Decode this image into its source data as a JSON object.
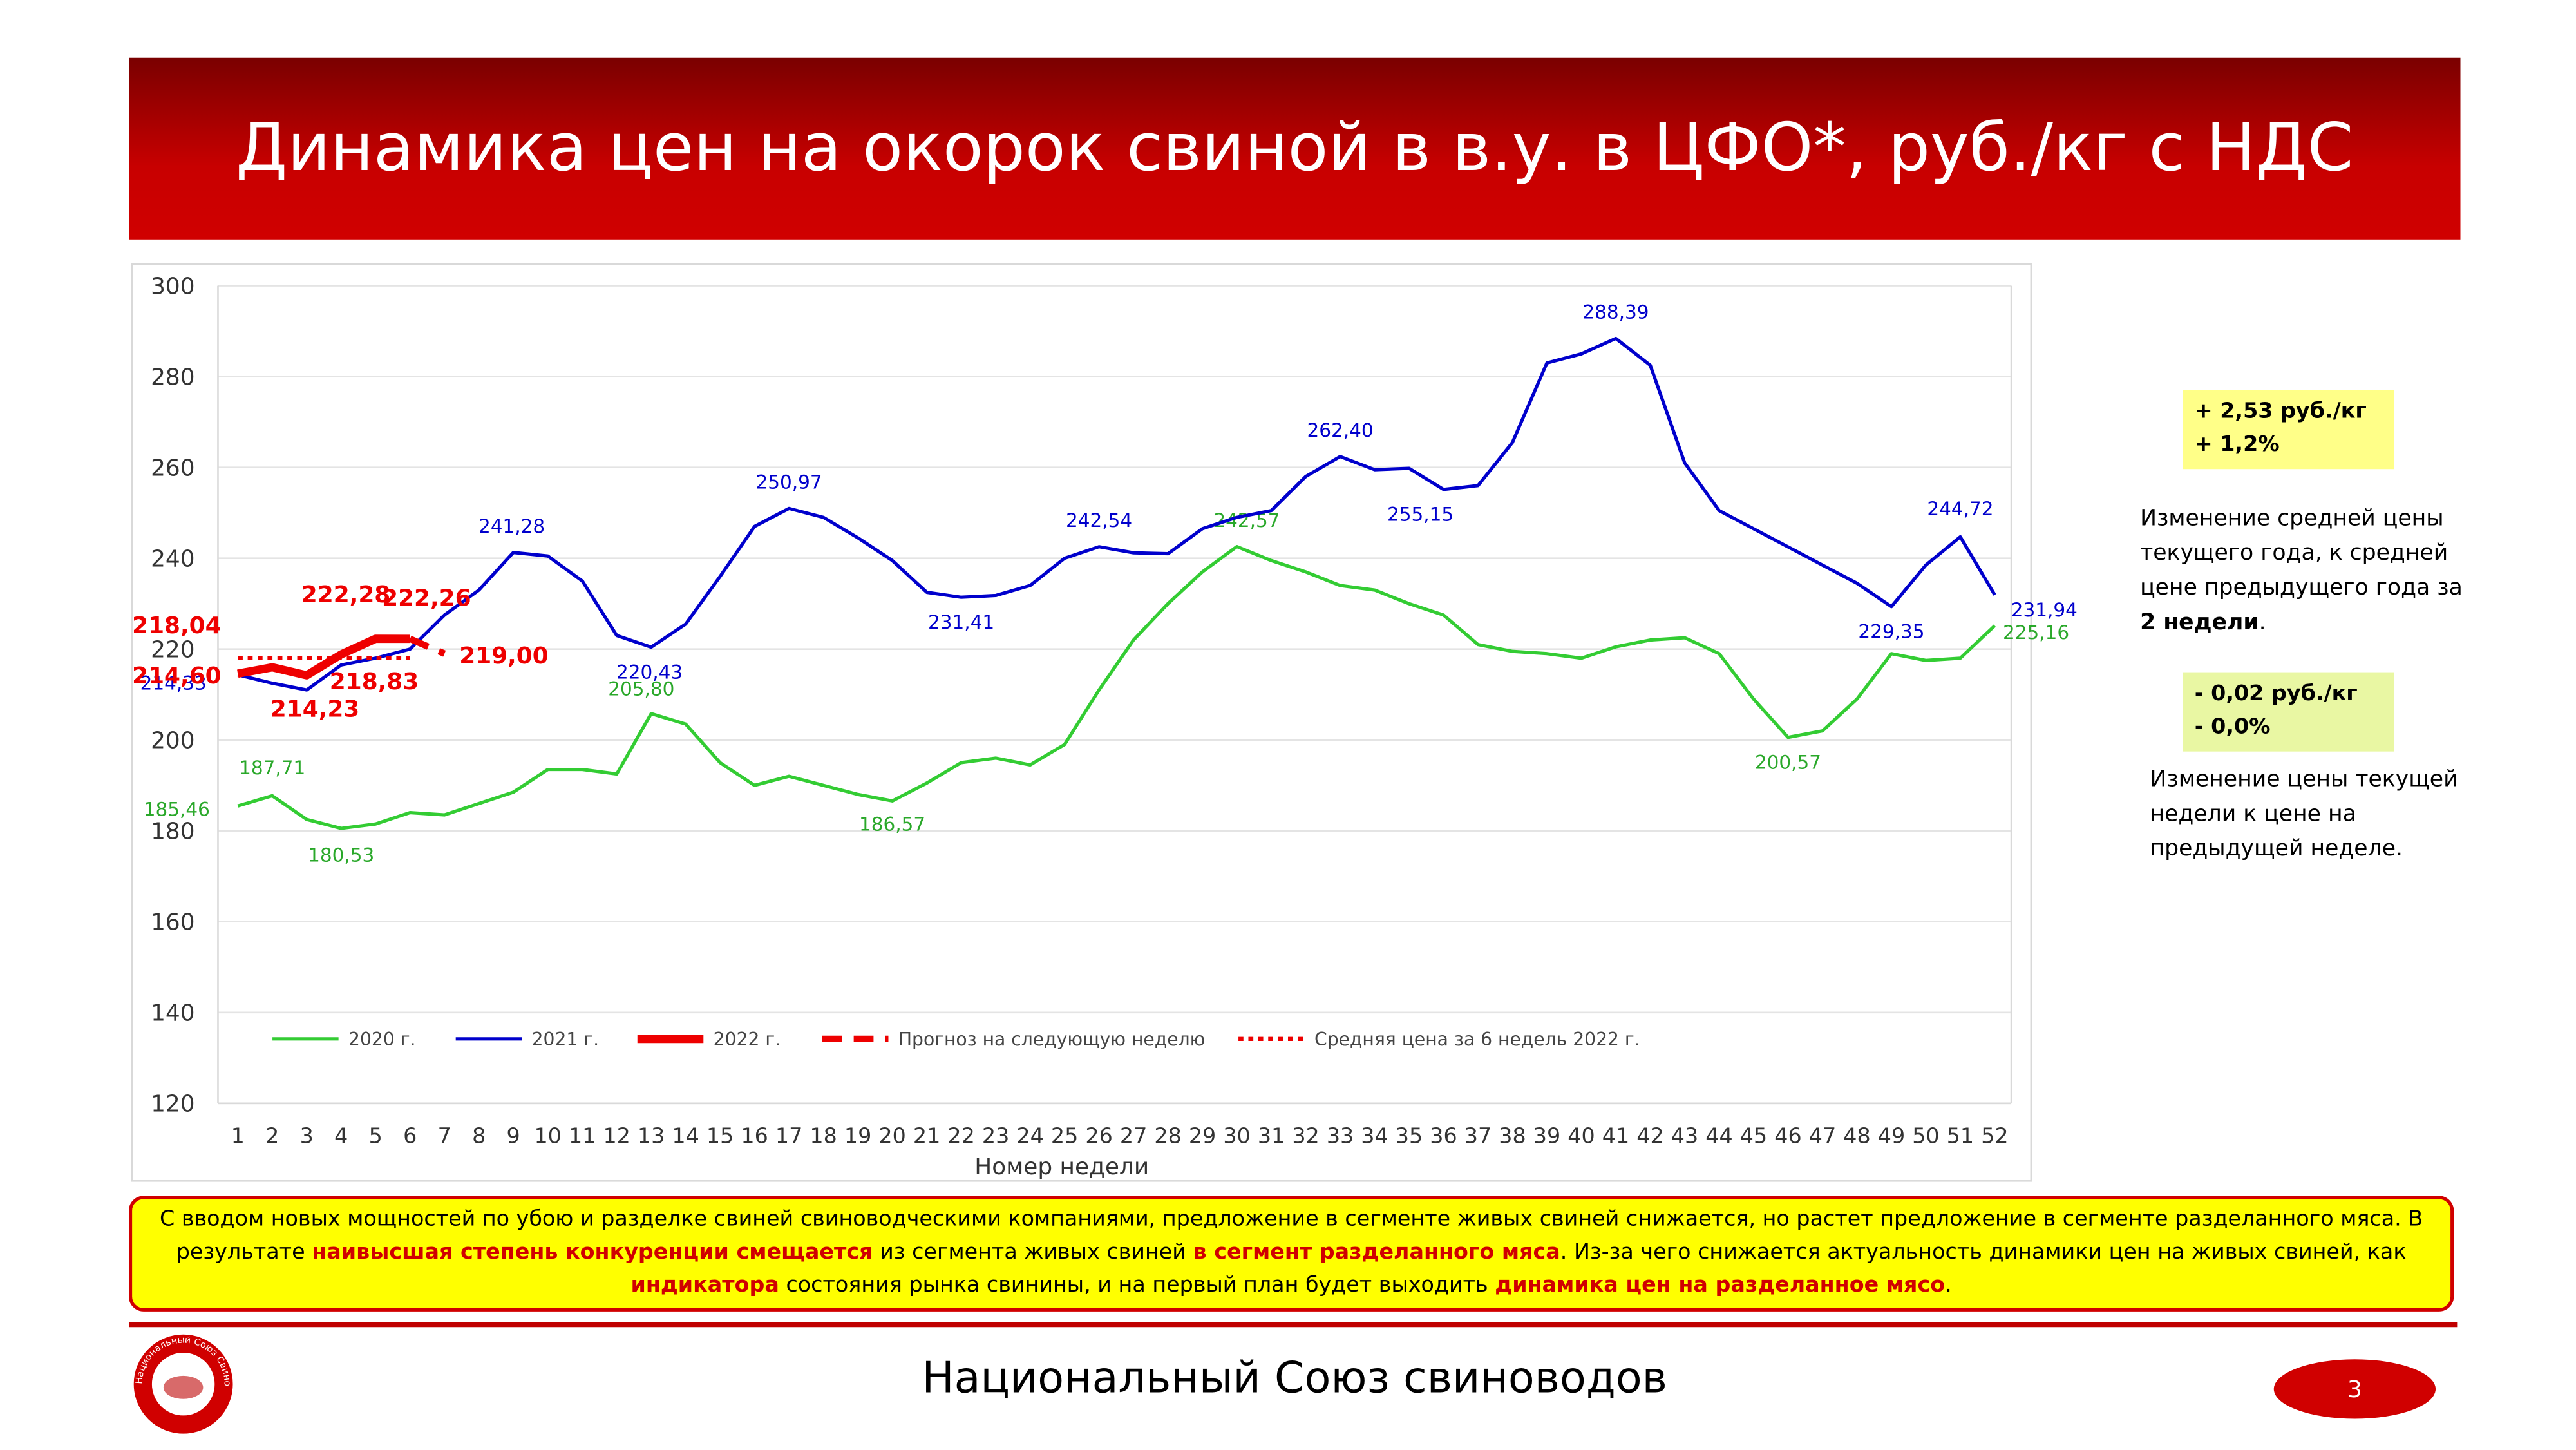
{
  "header": {
    "title": "Динамика цен на окорок свиной в в.у. в ЦФО*, руб./кг с НДС"
  },
  "chart_data": {
    "type": "line",
    "x_label": "Номер недели",
    "categories": [
      1,
      2,
      3,
      4,
      5,
      6,
      7,
      8,
      9,
      10,
      11,
      12,
      13,
      14,
      15,
      16,
      17,
      18,
      19,
      20,
      21,
      22,
      23,
      24,
      25,
      26,
      27,
      28,
      29,
      30,
      31,
      32,
      33,
      34,
      35,
      36,
      37,
      38,
      39,
      40,
      41,
      42,
      43,
      44,
      45,
      46,
      47,
      48,
      49,
      50,
      51,
      52
    ],
    "ylim": [
      120,
      300
    ],
    "yticks": [
      120,
      140,
      160,
      180,
      200,
      220,
      240,
      260,
      280,
      300
    ],
    "grid": true,
    "series": [
      {
        "name": "2020 г.",
        "color": "#33cc33",
        "style": "solid",
        "x": [
          1,
          2,
          3,
          4,
          5,
          6,
          7,
          8,
          9,
          10,
          11,
          12,
          13,
          14,
          15,
          16,
          17,
          18,
          19,
          20,
          21,
          22,
          23,
          24,
          25,
          26,
          27,
          28,
          29,
          30,
          31,
          32,
          33,
          34,
          35,
          36,
          37,
          38,
          39,
          40,
          41,
          42,
          43,
          44,
          45,
          46,
          47,
          48,
          49,
          50,
          51,
          52
        ],
        "values": [
          185.46,
          187.71,
          182.5,
          180.53,
          181.5,
          184,
          183.5,
          186,
          188.5,
          193.5,
          193.5,
          192.5,
          205.8,
          203.5,
          195,
          190,
          192,
          190,
          188,
          186.57,
          190.5,
          195,
          196,
          194.5,
          199,
          211,
          222,
          230,
          237,
          242.57,
          239.5,
          237,
          234,
          233,
          230,
          227.5,
          221,
          219.5,
          219,
          218,
          220.5,
          222,
          222.5,
          219,
          209,
          200.57,
          202,
          209,
          219,
          217.5,
          218,
          225.16
        ],
        "value_labels": [
          "185,46",
          "187,71",
          null,
          "180,53",
          null,
          null,
          null,
          null,
          null,
          null,
          null,
          null,
          "205,80",
          null,
          null,
          null,
          null,
          null,
          null,
          "186,57",
          null,
          null,
          null,
          null,
          null,
          null,
          null,
          null,
          null,
          "242,57",
          null,
          null,
          null,
          null,
          null,
          null,
          null,
          null,
          null,
          null,
          null,
          null,
          null,
          null,
          null,
          "200,57",
          null,
          null,
          null,
          null,
          null,
          "225,16"
        ]
      },
      {
        "name": "2021 г.",
        "color": "#0000cc",
        "style": "solid",
        "x": [
          1,
          2,
          3,
          4,
          5,
          6,
          7,
          8,
          9,
          10,
          11,
          12,
          13,
          14,
          15,
          16,
          17,
          18,
          19,
          20,
          21,
          22,
          23,
          24,
          25,
          26,
          27,
          28,
          29,
          30,
          31,
          32,
          33,
          34,
          35,
          36,
          37,
          38,
          39,
          40,
          41,
          42,
          43,
          44,
          45,
          46,
          47,
          48,
          49,
          50,
          51,
          52
        ],
        "values": [
          214.33,
          212.5,
          211,
          216.5,
          218,
          220,
          227.5,
          233,
          241.28,
          240.5,
          235,
          223,
          220.43,
          225.5,
          236,
          247,
          250.97,
          249,
          244.5,
          239.5,
          232.5,
          231.41,
          231.8,
          234,
          240,
          242.54,
          241.2,
          241,
          246.5,
          249,
          250.5,
          258,
          262.4,
          259.5,
          259.8,
          255.15,
          256,
          265.5,
          283,
          285,
          288.39,
          282.5,
          261,
          250.5,
          246.5,
          242.5,
          238.5,
          234.5,
          229.35,
          238.5,
          244.72,
          231.94
        ],
        "value_labels": [
          "214,33",
          null,
          null,
          null,
          null,
          null,
          null,
          null,
          "241,28",
          null,
          null,
          null,
          "220,43",
          null,
          null,
          null,
          "250,97",
          null,
          null,
          null,
          null,
          "231,41",
          null,
          null,
          null,
          "242,54",
          null,
          null,
          null,
          null,
          null,
          null,
          "262,40",
          null,
          null,
          "255,15",
          null,
          null,
          null,
          null,
          "288,39",
          null,
          null,
          null,
          null,
          null,
          null,
          null,
          "229,35",
          null,
          "244,72",
          "231,94"
        ]
      },
      {
        "name": "2022 г.",
        "color": "#ee0000",
        "style": "bold",
        "x": [
          1,
          2,
          3,
          4,
          5,
          6
        ],
        "values": [
          214.6,
          216,
          214.23,
          218.83,
          222.28,
          222.26
        ],
        "value_labels": [
          "214,60",
          null,
          "214,23",
          "218,83",
          "222,28",
          "222,26"
        ]
      },
      {
        "name": "Прогноз на следующую неделю",
        "color": "#ee0000",
        "style": "dashed",
        "x": [
          6,
          7
        ],
        "values": [
          222.26,
          219.0
        ],
        "value_labels": [
          null,
          "219,00"
        ]
      },
      {
        "name": "Средняя цена за 6 недель 2022 г.",
        "color": "#ee0000",
        "style": "dotted",
        "x": [
          1,
          2,
          3,
          4,
          5,
          6
        ],
        "values": [
          218.04,
          218.04,
          218.04,
          218.04,
          218.04,
          218.04
        ],
        "value_labels": [
          "218,04",
          null,
          null,
          null,
          null,
          null
        ]
      }
    ]
  },
  "side": [
    {
      "box": [
        "+ 2,53 руб./кг",
        "+ 1,2%"
      ],
      "description": "Изменение средней цены текущего года, к средней цене предыдущего года за",
      "description_bold": "2 недели",
      "description_end": "."
    },
    {
      "box": [
        "- 0,02 руб./кг",
        "- 0,0%"
      ],
      "description": "Изменение цены текущей недели к цене на предыдущей неделе."
    }
  ],
  "note": [
    {
      "text": "С вводом новых мощностей по убою и разделке свиней свиноводческими компаниями, предложение в сегменте живых свиней снижается, но растет предложение в сегменте разделанного мяса.  В результате ",
      "em": false
    },
    {
      "text": "наивысшая степень конкуренции смещается",
      "em": true
    },
    {
      "text": " из сегмента живых свиней ",
      "em": false
    },
    {
      "text": "в сегмент разделанного мяса",
      "em": true
    },
    {
      "text": ". Из-за чего снижается актуальность динамики цен на живых свиней, как ",
      "em": false
    },
    {
      "text": "индикатора",
      "em": true
    },
    {
      "text": " состояния рынка свинины, и на первый план будет выходить ",
      "em": false
    },
    {
      "text": "динамика цен на разделанное мясо",
      "em": true
    },
    {
      "text": ".",
      "em": false
    }
  ],
  "footer": {
    "organization": "Национальный Союз свиноводов",
    "page": "3",
    "logo_text": "Национальный Союз Свиноводов"
  }
}
